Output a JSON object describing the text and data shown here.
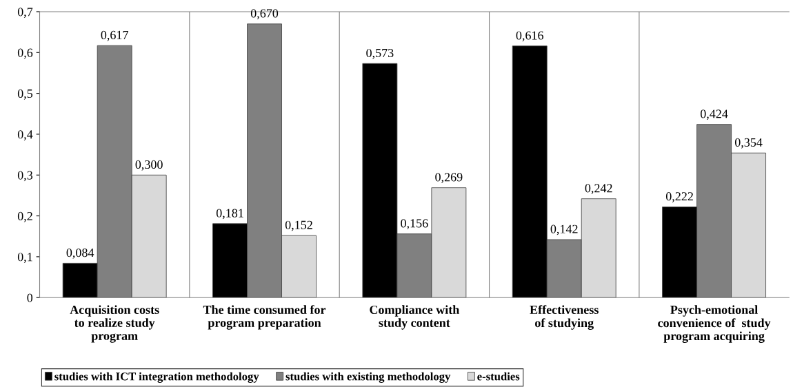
{
  "chart_data": {
    "type": "bar",
    "categories": [
      "Acquisition costs\nto realize study\nprogram",
      "The time consumed for\nprogram preparation",
      "Compliance with\nstudy content",
      "Effectiveness\nof studying",
      "Psych-emotional\nconvenience of  study\nprogram acquiring"
    ],
    "series": [
      {
        "name": "studies with ICT integration methodology",
        "color": "#000000",
        "values": [
          0.084,
          0.181,
          0.573,
          0.616,
          0.222
        ],
        "value_labels": [
          "0,084",
          "0,181",
          "0,573",
          "0,616",
          "0,222"
        ]
      },
      {
        "name": "studies with existing methodology",
        "color": "#808080",
        "values": [
          0.617,
          0.67,
          0.156,
          0.142,
          0.424
        ],
        "value_labels": [
          "0,617",
          "0,670",
          "0,156",
          "0,142",
          "0,424"
        ]
      },
      {
        "name": "e-studies",
        "color": "#d9d9d9",
        "values": [
          0.3,
          0.152,
          0.269,
          0.242,
          0.354
        ],
        "value_labels": [
          "0,300",
          "0,152",
          "0,269",
          "0,242",
          "0,354"
        ]
      }
    ],
    "ylim": [
      0,
      0.7
    ],
    "yticks": [
      {
        "value": 0,
        "label": "0"
      },
      {
        "value": 0.1,
        "label": "0,1"
      },
      {
        "value": 0.2,
        "label": "0,2"
      },
      {
        "value": 0.3,
        "label": "0,3"
      },
      {
        "value": 0.4,
        "label": "0,4"
      },
      {
        "value": 0.5,
        "label": "0,5"
      },
      {
        "value": 0.6,
        "label": "0,6"
      },
      {
        "value": 0.7,
        "label": "0,7"
      }
    ],
    "grid": "x",
    "legend": "bottom"
  }
}
